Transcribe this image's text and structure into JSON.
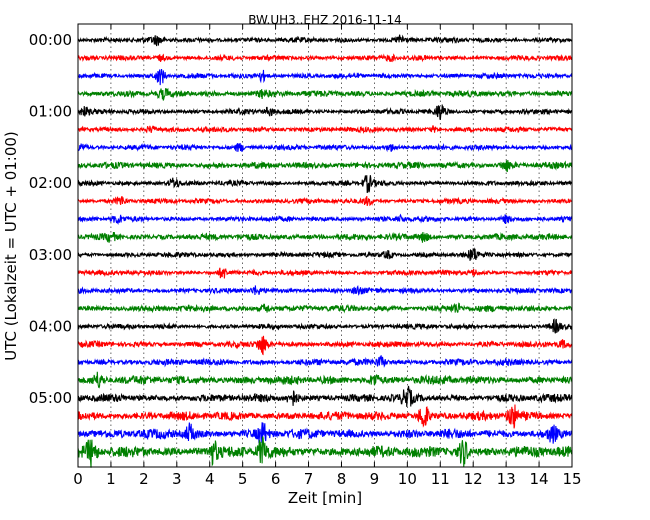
{
  "chart_data": {
    "type": "line",
    "title": "BW.UH3..EHZ 2016-11-14",
    "xlabel": "Zeit  [min]",
    "ylabel": "UTC (Lokalzeit = UTC + 01:00)",
    "xlim": [
      0,
      15
    ],
    "x_ticks": [
      "0",
      "1",
      "2",
      "3",
      "4",
      "5",
      "6",
      "7",
      "8",
      "9",
      "10",
      "11",
      "12",
      "13",
      "14",
      "15"
    ],
    "y_ticks": [
      "00:00",
      "01:00",
      "02:00",
      "03:00",
      "04:00",
      "05:00"
    ],
    "trace_interval_minutes": 15,
    "trace_count": 24,
    "grid": true,
    "trace_colors": [
      "#000000",
      "#ff0000",
      "#0000ff",
      "#008000"
    ],
    "traces": [
      {
        "start": "00:00",
        "events": [
          [
            2.4,
            1.5
          ],
          [
            9.8,
            1.6
          ]
        ]
      },
      {
        "start": "00:15",
        "events": [
          [
            2.5,
            1.0
          ],
          [
            9.5,
            1.0
          ]
        ]
      },
      {
        "start": "00:30",
        "events": [
          [
            2.5,
            3.2
          ],
          [
            5.6,
            2.0
          ]
        ]
      },
      {
        "start": "00:45",
        "events": [
          [
            2.6,
            1.2
          ],
          [
            5.6,
            1.0
          ]
        ]
      },
      {
        "start": "01:00",
        "events": [
          [
            0.2,
            1.5
          ],
          [
            5.8,
            1.6
          ],
          [
            11.0,
            3.0
          ]
        ]
      },
      {
        "start": "01:15",
        "events": [
          [
            2.2,
            1.2
          ],
          [
            10.8,
            1.0
          ]
        ]
      },
      {
        "start": "01:30",
        "events": [
          [
            0.1,
            1.3
          ],
          [
            4.9,
            1.6
          ],
          [
            9.5,
            1.3
          ]
        ]
      },
      {
        "start": "01:45",
        "events": [
          [
            13.0,
            1.6
          ]
        ]
      },
      {
        "start": "02:00",
        "events": [
          [
            2.9,
            1.8
          ],
          [
            8.8,
            3.3
          ]
        ]
      },
      {
        "start": "02:15",
        "events": [
          [
            1.3,
            1.8
          ],
          [
            8.8,
            1.5
          ]
        ]
      },
      {
        "start": "02:30",
        "events": [
          [
            1.2,
            1.5
          ],
          [
            9.8,
            1.2
          ],
          [
            13.0,
            1.5
          ]
        ]
      },
      {
        "start": "02:45",
        "events": [
          [
            1.0,
            1.2
          ],
          [
            10.5,
            1.5
          ]
        ]
      },
      {
        "start": "03:00",
        "events": [
          [
            9.4,
            1.5
          ],
          [
            12.0,
            2.3
          ]
        ]
      },
      {
        "start": "03:15",
        "events": [
          [
            4.4,
            2.3
          ],
          [
            12.0,
            1.2
          ]
        ]
      },
      {
        "start": "03:30",
        "events": [
          [
            5.4,
            1.5
          ],
          [
            8.5,
            1.4
          ]
        ]
      },
      {
        "start": "03:45",
        "events": [
          [
            5.7,
            1.2
          ],
          [
            11.5,
            1.3
          ]
        ]
      },
      {
        "start": "04:00",
        "events": [
          [
            14.5,
            2.3
          ]
        ]
      },
      {
        "start": "04:15",
        "events": [
          [
            5.6,
            3.5
          ],
          [
            14.7,
            1.3
          ]
        ]
      },
      {
        "start": "04:30",
        "events": [
          [
            9.2,
            1.6
          ]
        ]
      },
      {
        "start": "04:45",
        "events": [
          [
            0.6,
            1.5
          ],
          [
            9.0,
            1.3
          ]
        ]
      },
      {
        "start": "05:00",
        "events": [
          [
            6.5,
            1.8
          ],
          [
            10.0,
            2.2
          ]
        ]
      },
      {
        "start": "05:15",
        "events": [
          [
            10.5,
            3.0
          ],
          [
            13.2,
            2.5
          ]
        ]
      },
      {
        "start": "05:30",
        "events": [
          [
            3.4,
            1.8
          ],
          [
            5.6,
            2.0
          ],
          [
            14.4,
            1.5
          ]
        ]
      },
      {
        "start": "05:45",
        "events": [
          [
            0.4,
            2.0
          ],
          [
            4.1,
            1.8
          ],
          [
            5.6,
            2.2
          ],
          [
            11.7,
            2.2
          ]
        ]
      }
    ]
  }
}
